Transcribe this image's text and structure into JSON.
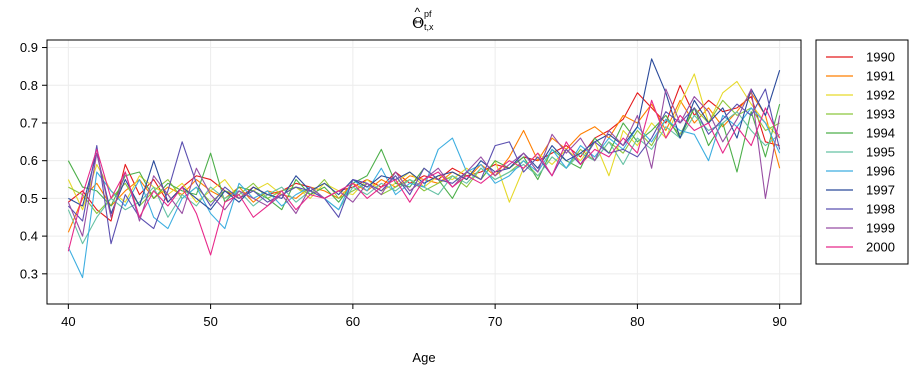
{
  "chart_data": {
    "type": "line",
    "title": {
      "base": "Θ",
      "accent": "^",
      "superscript": "pf",
      "subscript": "t,x"
    },
    "xlabel": "Age",
    "ylabel": "",
    "xlim": [
      38.5,
      91.5
    ],
    "ylim": [
      0.22,
      0.92
    ],
    "xticks": [
      40,
      50,
      60,
      70,
      80,
      90
    ],
    "yticks": [
      0.3,
      0.4,
      0.5,
      0.6,
      0.7,
      0.8,
      0.9
    ],
    "grid": true,
    "legend_position": "right",
    "x": [
      40,
      41,
      42,
      43,
      44,
      45,
      46,
      47,
      48,
      49,
      50,
      51,
      52,
      53,
      54,
      55,
      56,
      57,
      58,
      59,
      60,
      61,
      62,
      63,
      64,
      65,
      66,
      67,
      68,
      69,
      70,
      71,
      72,
      73,
      74,
      75,
      76,
      77,
      78,
      79,
      80,
      81,
      82,
      83,
      84,
      85,
      86,
      87,
      88,
      89,
      90
    ],
    "series": [
      {
        "name": "1990",
        "color": "#e41a1c",
        "values": [
          0.49,
          0.52,
          0.47,
          0.44,
          0.59,
          0.51,
          0.55,
          0.49,
          0.53,
          0.56,
          0.55,
          0.52,
          0.5,
          0.53,
          0.51,
          0.52,
          0.54,
          0.53,
          0.5,
          0.52,
          0.53,
          0.55,
          0.53,
          0.57,
          0.54,
          0.56,
          0.55,
          0.58,
          0.56,
          0.57,
          0.59,
          0.58,
          0.61,
          0.6,
          0.62,
          0.64,
          0.61,
          0.66,
          0.68,
          0.71,
          0.78,
          0.74,
          0.7,
          0.8,
          0.72,
          0.76,
          0.73,
          0.74,
          0.77,
          0.65,
          0.64
        ]
      },
      {
        "name": "1991",
        "color": "#ff7f00",
        "values": [
          0.41,
          0.5,
          0.54,
          0.48,
          0.52,
          0.55,
          0.5,
          0.53,
          0.51,
          0.55,
          0.52,
          0.5,
          0.53,
          0.49,
          0.52,
          0.51,
          0.5,
          0.53,
          0.52,
          0.5,
          0.54,
          0.52,
          0.55,
          0.53,
          0.56,
          0.55,
          0.54,
          0.57,
          0.55,
          0.59,
          0.56,
          0.61,
          0.68,
          0.6,
          0.66,
          0.63,
          0.67,
          0.69,
          0.66,
          0.72,
          0.7,
          0.75,
          0.68,
          0.76,
          0.7,
          0.74,
          0.69,
          0.73,
          0.78,
          0.72,
          0.58
        ]
      },
      {
        "name": "1992",
        "color": "#e6d92b",
        "values": [
          0.55,
          0.47,
          0.59,
          0.52,
          0.49,
          0.56,
          0.53,
          0.51,
          0.54,
          0.49,
          0.52,
          0.55,
          0.5,
          0.52,
          0.54,
          0.51,
          0.53,
          0.5,
          0.54,
          0.52,
          0.51,
          0.55,
          0.52,
          0.54,
          0.57,
          0.53,
          0.56,
          0.55,
          0.58,
          0.55,
          0.6,
          0.49,
          0.58,
          0.62,
          0.59,
          0.63,
          0.6,
          0.65,
          0.56,
          0.68,
          0.64,
          0.7,
          0.66,
          0.75,
          0.83,
          0.7,
          0.78,
          0.81,
          0.75,
          0.7,
          0.66
        ]
      },
      {
        "name": "1993",
        "color": "#8cc63f",
        "values": [
          0.53,
          0.51,
          0.46,
          0.5,
          0.54,
          0.48,
          0.52,
          0.55,
          0.5,
          0.53,
          0.49,
          0.52,
          0.51,
          0.54,
          0.5,
          0.52,
          0.53,
          0.51,
          0.55,
          0.5,
          0.52,
          0.54,
          0.51,
          0.53,
          0.55,
          0.52,
          0.54,
          0.56,
          0.53,
          0.58,
          0.55,
          0.57,
          0.6,
          0.56,
          0.61,
          0.58,
          0.63,
          0.6,
          0.65,
          0.62,
          0.68,
          0.64,
          0.71,
          0.67,
          0.74,
          0.7,
          0.76,
          0.72,
          0.74,
          0.68,
          0.7
        ]
      },
      {
        "name": "1994",
        "color": "#4daf4a",
        "values": [
          0.6,
          0.53,
          0.52,
          0.48,
          0.56,
          0.57,
          0.5,
          0.54,
          0.52,
          0.51,
          0.62,
          0.49,
          0.53,
          0.52,
          0.5,
          0.47,
          0.55,
          0.51,
          0.53,
          0.49,
          0.54,
          0.56,
          0.63,
          0.54,
          0.53,
          0.58,
          0.55,
          0.5,
          0.57,
          0.55,
          0.6,
          0.58,
          0.61,
          0.55,
          0.63,
          0.6,
          0.58,
          0.66,
          0.62,
          0.7,
          0.65,
          0.68,
          0.72,
          0.66,
          0.74,
          0.64,
          0.7,
          0.57,
          0.73,
          0.61,
          0.75
        ]
      },
      {
        "name": "1995",
        "color": "#66c2a5",
        "values": [
          0.47,
          0.38,
          0.45,
          0.5,
          0.47,
          0.49,
          0.53,
          0.45,
          0.51,
          0.48,
          0.53,
          0.5,
          0.52,
          0.48,
          0.51,
          0.53,
          0.49,
          0.52,
          0.5,
          0.47,
          0.53,
          0.51,
          0.54,
          0.52,
          0.55,
          0.53,
          0.51,
          0.56,
          0.54,
          0.58,
          0.55,
          0.57,
          0.59,
          0.56,
          0.61,
          0.58,
          0.62,
          0.6,
          0.65,
          0.59,
          0.66,
          0.63,
          0.69,
          0.66,
          0.72,
          0.68,
          0.7,
          0.73,
          0.68,
          0.64,
          0.67
        ]
      },
      {
        "name": "1996",
        "color": "#3eaee0",
        "values": [
          0.37,
          0.29,
          0.57,
          0.52,
          0.48,
          0.55,
          0.45,
          0.42,
          0.5,
          0.53,
          0.46,
          0.42,
          0.54,
          0.5,
          0.52,
          0.48,
          0.51,
          0.53,
          0.5,
          0.47,
          0.55,
          0.52,
          0.58,
          0.51,
          0.54,
          0.53,
          0.63,
          0.66,
          0.57,
          0.59,
          0.54,
          0.56,
          0.6,
          0.57,
          0.63,
          0.58,
          0.64,
          0.61,
          0.66,
          0.63,
          0.69,
          0.65,
          0.71,
          0.68,
          0.67,
          0.6,
          0.72,
          0.69,
          0.74,
          0.7,
          0.62
        ]
      },
      {
        "name": "1997",
        "color": "#2b4b9b",
        "values": [
          0.5,
          0.48,
          0.62,
          0.46,
          0.55,
          0.48,
          0.6,
          0.49,
          0.53,
          0.5,
          0.47,
          0.52,
          0.49,
          0.53,
          0.51,
          0.5,
          0.56,
          0.52,
          0.54,
          0.51,
          0.55,
          0.53,
          0.56,
          0.55,
          0.57,
          0.54,
          0.56,
          0.57,
          0.55,
          0.6,
          0.57,
          0.58,
          0.62,
          0.58,
          0.64,
          0.6,
          0.62,
          0.65,
          0.67,
          0.64,
          0.69,
          0.87,
          0.78,
          0.66,
          0.76,
          0.7,
          0.74,
          0.66,
          0.79,
          0.72,
          0.84
        ]
      },
      {
        "name": "1998",
        "color": "#5b50b0",
        "values": [
          0.48,
          0.44,
          0.64,
          0.38,
          0.51,
          0.45,
          0.42,
          0.52,
          0.65,
          0.54,
          0.48,
          0.53,
          0.5,
          0.52,
          0.49,
          0.51,
          0.53,
          0.52,
          0.5,
          0.45,
          0.55,
          0.54,
          0.52,
          0.56,
          0.51,
          0.58,
          0.55,
          0.54,
          0.57,
          0.55,
          0.64,
          0.65,
          0.57,
          0.61,
          0.56,
          0.63,
          0.59,
          0.65,
          0.62,
          0.63,
          0.61,
          0.66,
          0.73,
          0.7,
          0.74,
          0.67,
          0.71,
          0.75,
          0.72,
          0.79,
          0.63
        ]
      },
      {
        "name": "1999",
        "color": "#984ea3",
        "values": [
          0.49,
          0.4,
          0.62,
          0.45,
          0.57,
          0.44,
          0.56,
          0.51,
          0.46,
          0.58,
          0.51,
          0.47,
          0.52,
          0.5,
          0.48,
          0.51,
          0.46,
          0.53,
          0.5,
          0.52,
          0.49,
          0.54,
          0.51,
          0.57,
          0.52,
          0.55,
          0.58,
          0.53,
          0.57,
          0.61,
          0.56,
          0.59,
          0.62,
          0.57,
          0.67,
          0.62,
          0.66,
          0.6,
          0.68,
          0.64,
          0.72,
          0.58,
          0.79,
          0.7,
          0.77,
          0.73,
          0.65,
          0.71,
          0.79,
          0.5,
          0.72
        ]
      },
      {
        "name": "2000",
        "color": "#e7298a",
        "values": [
          0.36,
          0.51,
          0.63,
          0.5,
          0.57,
          0.45,
          0.52,
          0.48,
          0.53,
          0.46,
          0.35,
          0.49,
          0.51,
          0.45,
          0.48,
          0.52,
          0.47,
          0.51,
          0.5,
          0.52,
          0.54,
          0.5,
          0.53,
          0.55,
          0.49,
          0.55,
          0.57,
          0.53,
          0.56,
          0.54,
          0.57,
          0.6,
          0.58,
          0.62,
          0.56,
          0.65,
          0.59,
          0.63,
          0.61,
          0.66,
          0.62,
          0.76,
          0.66,
          0.72,
          0.68,
          0.7,
          0.62,
          0.69,
          0.64,
          0.74,
          0.66
        ]
      }
    ]
  }
}
